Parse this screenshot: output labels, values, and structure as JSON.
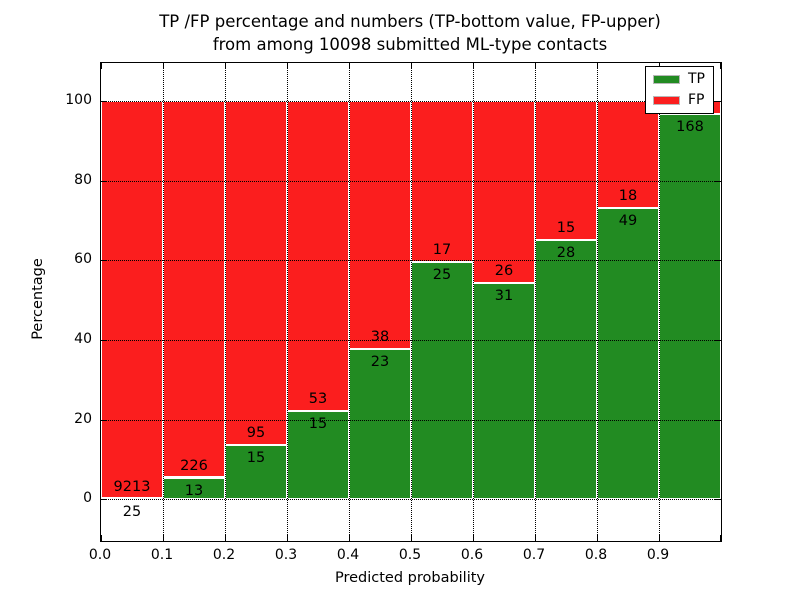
{
  "figure": {
    "background": "#ffffff",
    "spine_color": "#000000"
  },
  "chart_data": {
    "type": "bar",
    "stacked": true,
    "title_line1": "TP /FP percentage and numbers (TP-bottom value, FP-upper)",
    "title_line2": "from among 10098 submitted ML-type contacts",
    "xlabel": "Predicted probability",
    "ylabel": "Percentage",
    "x_tick_labels": [
      "0.0",
      "0.1",
      "0.2",
      "0.3",
      "0.4",
      "0.5",
      "0.6",
      "0.7",
      "0.8",
      "0.9"
    ],
    "y_tick_labels": [
      "0",
      "20",
      "40",
      "60",
      "80",
      "100"
    ],
    "y_tick_values": [
      0,
      20,
      40,
      60,
      80,
      100
    ],
    "xlim": [
      0.0,
      1.0
    ],
    "ylim_displayed": [
      -10.5,
      109.5
    ],
    "bin_width": 0.1,
    "grid_style": "dotted",
    "bar_edge_color": "#ffffff",
    "legend": {
      "position": "upper-right",
      "entries": [
        {
          "label": "TP",
          "color": "#228b22"
        },
        {
          "label": "FP",
          "color": "#fb1e1e"
        }
      ]
    },
    "series": [
      {
        "name": "TP",
        "color": "#228b22",
        "position": "bottom"
      },
      {
        "name": "FP",
        "color": "#fb1e1e",
        "position": "top"
      }
    ],
    "bins": [
      {
        "x0": 0.0,
        "x1": 0.1,
        "tp_count": 25,
        "fp_count": 9213,
        "tp_pct": 0.27
      },
      {
        "x0": 0.1,
        "x1": 0.2,
        "tp_count": 13,
        "fp_count": 226,
        "tp_pct": 5.44
      },
      {
        "x0": 0.2,
        "x1": 0.3,
        "tp_count": 15,
        "fp_count": 95,
        "tp_pct": 13.64
      },
      {
        "x0": 0.3,
        "x1": 0.4,
        "tp_count": 15,
        "fp_count": 53,
        "tp_pct": 22.06
      },
      {
        "x0": 0.4,
        "x1": 0.5,
        "tp_count": 23,
        "fp_count": 38,
        "tp_pct": 37.7
      },
      {
        "x0": 0.5,
        "x1": 0.6,
        "tp_count": 25,
        "fp_count": 17,
        "tp_pct": 59.52
      },
      {
        "x0": 0.6,
        "x1": 0.7,
        "tp_count": 31,
        "fp_count": 26,
        "tp_pct": 54.39
      },
      {
        "x0": 0.7,
        "x1": 0.8,
        "tp_count": 28,
        "fp_count": 15,
        "tp_pct": 65.12
      },
      {
        "x0": 0.8,
        "x1": 0.9,
        "tp_count": 49,
        "fp_count": 18,
        "tp_pct": 73.13
      },
      {
        "x0": 0.9,
        "x1": 1.0,
        "tp_count": 168,
        "fp_count": null,
        "tp_pct": 96.6
      }
    ]
  }
}
